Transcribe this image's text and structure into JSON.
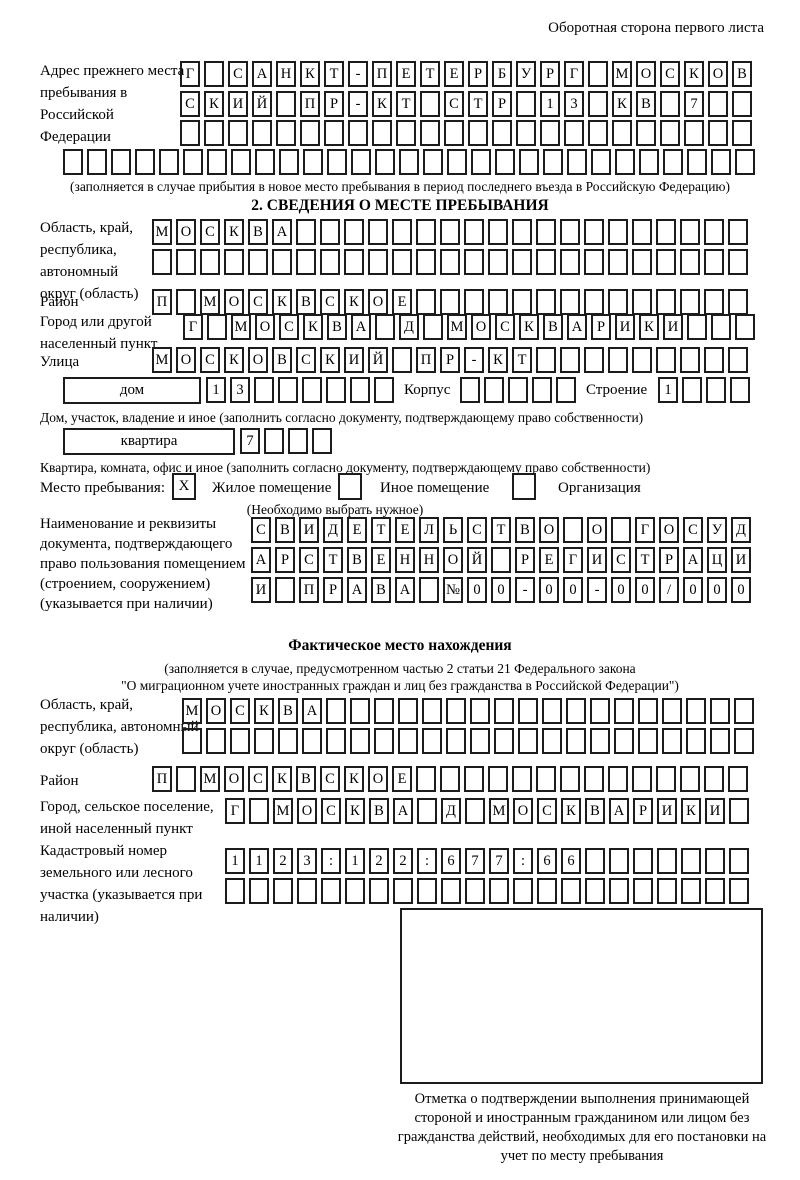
{
  "header": {
    "note": "Оборотная сторона первого листа"
  },
  "prev_address": {
    "label": "Адрес прежнего места пребывания в Российской Федерации",
    "row1": "Г САНКТ-ПЕТЕРБУРГ МОСКОВ",
    "row2": "СКИЙ ПР-КТ СТР 13 КВ 7  ",
    "row3": "                        ",
    "row4": "                             ",
    "note": "(заполняется в случае прибытия в новое место пребывания в период последнего въезда в Российскую Федерацию)"
  },
  "section2": {
    "title": "2. СВЕДЕНИЯ О МЕСТЕ ПРЕБЫВАНИЯ",
    "region_label": "Область, край, республика, автономный округ (область)",
    "region_row1": "МОСКВА                   ",
    "region_row2": "                         ",
    "district_label": "Район",
    "district_row": "П МОСКВСКОЕ              ",
    "city_label": "Город или другой населенный пункт",
    "city_row": "Г МОСКВА Д МОСКВАРИКИ   ",
    "street_label": "Улица",
    "street_row": "МОСКОВСКИЙ ПР-КТ         ",
    "house_box_label": "дом",
    "house_cells": "13      ",
    "korpus_label": "Корпус",
    "korpus_cells": "     ",
    "stroenie_label": "Строение",
    "stroenie_cells": "1   ",
    "house_note": "Дом, участок, владение и иное (заполнить согласно документу, подтверждающему право собственности)",
    "apt_box_label": "квартира",
    "apt_cells": "7   ",
    "apt_note": "Квартира, комната, офис и иное (заполнить согласно документу, подтверждающему право собственности)",
    "stay_label": "Место пребывания:",
    "stay_options": [
      {
        "checked": "X",
        "label": "Жилое помещение"
      },
      {
        "checked": "",
        "label": "Иное помещение"
      },
      {
        "checked": "",
        "label": "Организация"
      }
    ],
    "stay_note": "(Необходимо выбрать нужное)",
    "doc_label": "Наименование и реквизиты документа, подтверждающего право пользования помещением (строением, сооружением) (указывается при наличии)",
    "doc_row1": "СВИДЕТЕЛЬСТВО О ГОСУД",
    "doc_row2": "АРСТВЕННОЙ РЕГИСТРАЦИ",
    "doc_row3": "И ПРАВА №00-00-00/000"
  },
  "fact": {
    "title": "Фактическое место нахождения",
    "note1": "(заполняется в случае, предусмотренном частью 2 статьи 21 Федерального закона",
    "note2": "\"О миграционном учете иностранных граждан и лиц без гражданства в Российской Федерации\")",
    "region_label": "Область, край, республика, автономный округ (область)",
    "region_row1": "МОСКВА                  ",
    "region_row2": "                        ",
    "district_label": "Район",
    "district_row": "П МОСКВСКОЕ              ",
    "city_label": "Город, сельское поселение, иной населенный пункт",
    "city_row": "Г МОСКВА Д МОСКВАРИКИ ",
    "cadastre_label": "Кадастровый номер земельного или лесного участка (указывается при наличии)",
    "cadastre_row1": "1123:122:677:66       ",
    "cadastre_row2": "                      ",
    "stamp_caption": "Отметка о подтверждении выполнения принимающей стороной и иностранным гражданином или лицом без гражданства действий, необходимых для его постановки на учет по месту пребывания"
  }
}
